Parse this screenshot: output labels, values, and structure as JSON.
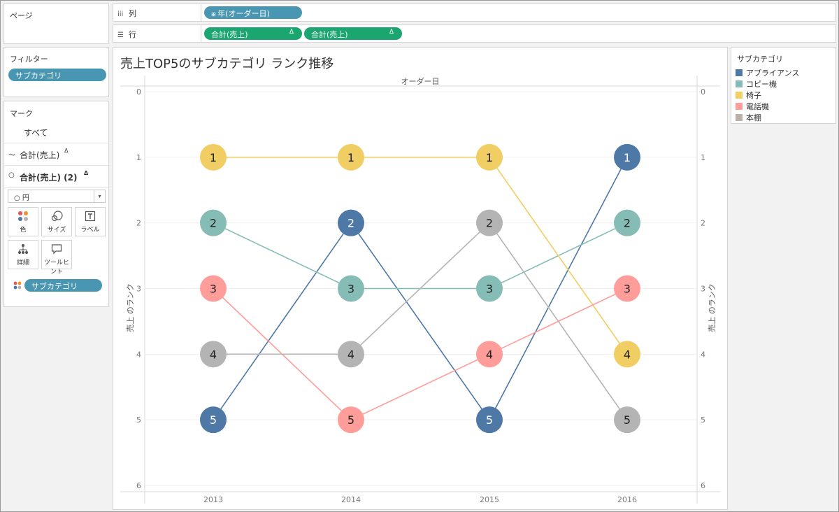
{
  "pages": {
    "title": "ページ"
  },
  "columns": {
    "label": "列",
    "pill": "年(オーダー日)"
  },
  "rows": {
    "label": "行",
    "pills": [
      "合計(売上)",
      "合計(売上)"
    ],
    "delta": "Δ"
  },
  "filters": {
    "title": "フィルター",
    "pill": "サブカテゴリ"
  },
  "marks": {
    "title": "マーク",
    "all": "すべて",
    "layer1": "合計(売上)",
    "layer2": "合計(売上) (2)",
    "delta": "Δ",
    "mark_type": "円",
    "buttons": {
      "color": "色",
      "size": "サイズ",
      "label": "ラベル",
      "detail": "詳細",
      "tooltip": "ツールヒント"
    },
    "color_pill": "サブカテゴリ"
  },
  "legend": {
    "title": "サブカテゴリ",
    "items": [
      {
        "name": "アプライアンス",
        "color": "#4e79a7"
      },
      {
        "name": "コピー機",
        "color": "#86bcb6"
      },
      {
        "name": "椅子",
        "color": "#f1ce63"
      },
      {
        "name": "電話機",
        "color": "#ff9d9a"
      },
      {
        "name": "本棚",
        "color": "#bab0ac"
      }
    ]
  },
  "chart_data": {
    "type": "line",
    "title": "売上TOP5のサブカテゴリ ランク推移",
    "header": "オーダー日",
    "ylabel": "売上 のランク",
    "ylim": [
      0,
      6
    ],
    "y_ticks": [
      "0",
      "1",
      "2",
      "3",
      "4",
      "5",
      "6"
    ],
    "categories": [
      "2013",
      "2014",
      "2015",
      "2016"
    ],
    "series": [
      {
        "name": "アプライアンス",
        "color": "#4e79a7",
        "values": [
          5,
          2,
          5,
          1
        ]
      },
      {
        "name": "コピー機",
        "color": "#86bcb6",
        "values": [
          2,
          3,
          3,
          2
        ]
      },
      {
        "name": "椅子",
        "color": "#f1ce63",
        "values": [
          1,
          1,
          1,
          4
        ]
      },
      {
        "name": "電話機",
        "color": "#ff9d9a",
        "values": [
          3,
          5,
          4,
          3
        ]
      },
      {
        "name": "本棚",
        "color": "#b4b4b4",
        "values": [
          4,
          4,
          2,
          5
        ]
      }
    ]
  }
}
